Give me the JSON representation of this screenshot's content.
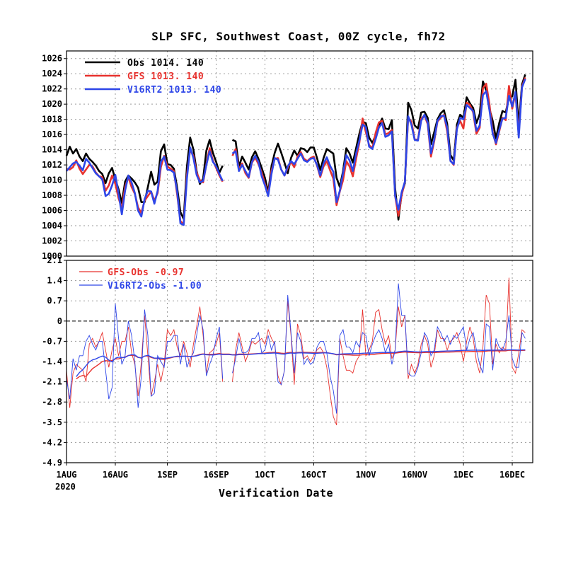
{
  "chart_data": [
    {
      "type": "line",
      "title": "SLP SFC, Southwest Coast, 00Z cycle, fh72",
      "ylim": [
        1000,
        1027
      ],
      "yticks": [
        1000,
        1002,
        1004,
        1006,
        1008,
        1010,
        1012,
        1014,
        1016,
        1018,
        1020,
        1022,
        1024,
        1026
      ],
      "x_dates": [
        "2020-08-01",
        "2020-08-02",
        "2020-08-03",
        "2020-08-04",
        "2020-08-05",
        "2020-08-06",
        "2020-08-07",
        "2020-08-08",
        "2020-08-09",
        "2020-08-10",
        "2020-08-11",
        "2020-08-12",
        "2020-08-13",
        "2020-08-14",
        "2020-08-15",
        "2020-08-16",
        "2020-08-17",
        "2020-08-18",
        "2020-08-19",
        "2020-08-20",
        "2020-08-21",
        "2020-08-22",
        "2020-08-23",
        "2020-08-24",
        "2020-08-25",
        "2020-08-26",
        "2020-08-27",
        "2020-08-28",
        "2020-08-29",
        "2020-08-30",
        "2020-08-31",
        "2020-09-01",
        "2020-09-02",
        "2020-09-03",
        "2020-09-04",
        "2020-09-05",
        "2020-09-06",
        "2020-09-07",
        "2020-09-08",
        "2020-09-09",
        "2020-09-10",
        "2020-09-11",
        "2020-09-12",
        "2020-09-13",
        "2020-09-14",
        "2020-09-15",
        "2020-09-16",
        "2020-09-17",
        "2020-09-18",
        "2020-09-19",
        "2020-09-20",
        "2020-09-21",
        "2020-09-22",
        "2020-09-23",
        "2020-09-24",
        "2020-09-25",
        "2020-09-26",
        "2020-09-27",
        "2020-09-28",
        "2020-09-29",
        "2020-09-30",
        "2020-10-01",
        "2020-10-02",
        "2020-10-03",
        "2020-10-04",
        "2020-10-05",
        "2020-10-06",
        "2020-10-07",
        "2020-10-08",
        "2020-10-09",
        "2020-10-10",
        "2020-10-11",
        "2020-10-12",
        "2020-10-13",
        "2020-10-14",
        "2020-10-15",
        "2020-10-16",
        "2020-10-17",
        "2020-10-18",
        "2020-10-19",
        "2020-10-20",
        "2020-10-21",
        "2020-10-22",
        "2020-10-23",
        "2020-10-24",
        "2020-10-25",
        "2020-10-26",
        "2020-10-27",
        "2020-10-28",
        "2020-10-29",
        "2020-10-30",
        "2020-10-31",
        "2020-11-01",
        "2020-11-02",
        "2020-11-03",
        "2020-11-04",
        "2020-11-05",
        "2020-11-06",
        "2020-11-07",
        "2020-11-08",
        "2020-11-09",
        "2020-11-10",
        "2020-11-11",
        "2020-11-12",
        "2020-11-13",
        "2020-11-14",
        "2020-11-15",
        "2020-11-16",
        "2020-11-17",
        "2020-11-18",
        "2020-11-19",
        "2020-11-20",
        "2020-11-21",
        "2020-11-22",
        "2020-11-23",
        "2020-11-24",
        "2020-11-25",
        "2020-11-26",
        "2020-11-27",
        "2020-11-28",
        "2020-11-29",
        "2020-11-30",
        "2020-12-01",
        "2020-12-02",
        "2020-12-03",
        "2020-12-04",
        "2020-12-05",
        "2020-12-06",
        "2020-12-07",
        "2020-12-08",
        "2020-12-09",
        "2020-12-10",
        "2020-12-11",
        "2020-12-12",
        "2020-12-13",
        "2020-12-14",
        "2020-12-15",
        "2020-12-16",
        "2020-12-17",
        "2020-12-18",
        "2020-12-19",
        "2020-12-20",
        "2020-12-21"
      ],
      "series": [
        {
          "name": "Obs",
          "legend_label": "Obs  1014.  140",
          "color": "#000000",
          "values": [
            1013.2,
            1014.4,
            1013.5,
            1014.1,
            1013.1,
            1012.5,
            1013.5,
            1012.8,
            1012.4,
            1011.9,
            1011.2,
            1010.8,
            1009.6,
            1010.9,
            1011.6,
            1010.1,
            1008.8,
            1007.0,
            1009.8,
            1010.6,
            1010.2,
            1009.7,
            1009.0,
            1007.1,
            1007.1,
            1009.1,
            1011.1,
            1009.4,
            1009.8,
            1013.8,
            1014.7,
            1012.1,
            1012.0,
            1011.5,
            1009.0,
            1005.8,
            1004.9,
            1011.8,
            1015.6,
            1014.0,
            1011.2,
            1009.5,
            1010.2,
            1013.9,
            1015.3,
            1013.6,
            1012.4,
            1011.0,
            1011.9,
            null,
            null,
            1015.3,
            1015.1,
            1011.8,
            1013.1,
            1012.3,
            1011.4,
            1013.0,
            1013.8,
            1012.8,
            1011.6,
            1010.3,
            1008.4,
            1011.8,
            1013.6,
            1014.8,
            1013.6,
            1012.3,
            1010.9,
            1012.9,
            1013.9,
            1013.2,
            1014.2,
            1014.1,
            1013.7,
            1014.3,
            1014.3,
            1012.9,
            1011.3,
            1012.9,
            1014.1,
            1013.8,
            1013.5,
            1010.3,
            1009.1,
            1011.2,
            1014.2,
            1013.5,
            1012.3,
            1014.2,
            1016.1,
            1017.7,
            1017.5,
            1015.6,
            1014.9,
            1015.9,
            1017.2,
            1018.1,
            1016.8,
            1016.7,
            1017.9,
            1008.9,
            1004.8,
            1008.2,
            1009.6,
            1020.2,
            1019.2,
            1017.2,
            1016.8,
            1018.9,
            1019.0,
            1018.2,
            1014.7,
            1016.3,
            1018.0,
            1018.8,
            1019.2,
            1017.4,
            1013.3,
            1012.6,
            1017.3,
            1018.6,
            1018.2,
            1020.9,
            1020.1,
            1019.5,
            1017.5,
            1018.7,
            1023.0,
            1021.8,
            1019.4,
            1017.8,
            1015.5,
            1017.5,
            1019.1,
            1018.9,
            1020.9,
            1021.0,
            1023.2,
            1017.2,
            1022.6,
            1023.9
          ]
        },
        {
          "name": "GFS",
          "legend_label": "GFS  1013.  140",
          "color": "#e8322e",
          "values": [
            1011.5,
            1011.4,
            1011.7,
            1012.6,
            1011.5,
            1010.8,
            1011.4,
            1012.0,
            1011.8,
            1011.0,
            1010.5,
            1010.4,
            1008.6,
            1009.3,
            1010.6,
            1009.5,
            1007.6,
            1006.3,
            1009.1,
            1010.4,
            1009.1,
            1008.2,
            1006.4,
            1005.7,
            1007.3,
            1007.9,
            1008.5,
            1007.3,
            1008.3,
            1011.7,
            1013.2,
            1011.8,
            1011.5,
            1011.2,
            1008.1,
            1004.6,
            1004.2,
            1010.7,
            1014.0,
            1013.2,
            1011.0,
            1010.0,
            1009.7,
            1012.1,
            1014.2,
            1012.6,
            1011.6,
            1010.6,
            1009.8,
            null,
            null,
            1013.2,
            1014.1,
            1011.4,
            1012.2,
            1010.9,
            1010.3,
            1012.3,
            1013.0,
            1012.1,
            1011.0,
            1009.5,
            1008.1,
            1011.2,
            1012.8,
            1012.9,
            1011.4,
            1010.6,
            1011.6,
            1012.4,
            1011.7,
            1013.1,
            1013.7,
            1012.8,
            1012.5,
            1012.9,
            1013.1,
            1011.9,
            1010.4,
            1011.8,
            1012.5,
            1011.3,
            1010.2,
            1006.7,
            1008.5,
            1010.0,
            1012.5,
            1011.8,
            1010.5,
            1012.8,
            1014.9,
            1018.1,
            1016.3,
            1014.6,
            1014.2,
            1016.2,
            1017.6,
            1017.8,
            1016.0,
            1016.2,
            1016.6,
            1007.9,
            1005.3,
            1008.0,
            1009.8,
            1018.2,
            1017.7,
            1015.4,
            1015.3,
            1018.1,
            1018.5,
            1017.4,
            1013.1,
            1015.1,
            1017.7,
            1018.2,
            1018.6,
            1016.4,
            1012.6,
            1012.0,
            1016.9,
            1017.8,
            1016.8,
            1020.2,
            1019.9,
            1018.9,
            1016.1,
            1016.9,
            1022.1,
            1022.7,
            1020.0,
            1016.3,
            1014.7,
            1016.4,
            1018.2,
            1017.9,
            1022.4,
            1019.4,
            1021.4,
            1016.1,
            1022.3,
            1023.5
          ]
        },
        {
          "name": "V16RT2",
          "legend_label": "V16RT2  1013.  140",
          "color": "#2e46e8",
          "values": [
            1011.2,
            1011.7,
            1012.2,
            1012.4,
            1011.9,
            1011.3,
            1012.8,
            1012.3,
            1011.6,
            1010.9,
            1010.5,
            1010.1,
            1007.9,
            1008.2,
            1009.3,
            1010.7,
            1008.2,
            1005.5,
            1008.6,
            1010.6,
            1009.7,
            1008.3,
            1006.0,
            1005.2,
            1007.5,
            1008.6,
            1008.5,
            1006.9,
            1008.6,
            1012.4,
            1013.1,
            1011.4,
            1011.3,
            1011.0,
            1008.5,
            1004.3,
            1004.1,
            1010.2,
            1014.3,
            1012.9,
            1010.7,
            1009.7,
            1009.9,
            1012.0,
            1013.8,
            1012.4,
            1011.8,
            1010.8,
            1009.9,
            null,
            null,
            1013.5,
            1013.8,
            1011.2,
            1012.0,
            1011.2,
            1010.4,
            1012.4,
            1013.2,
            1012.4,
            1010.5,
            1009.3,
            1007.9,
            1010.8,
            1012.9,
            1012.7,
            1011.4,
            1010.6,
            1011.8,
            1012.5,
            1012.1,
            1012.8,
            1013.5,
            1012.6,
            1012.4,
            1012.8,
            1012.9,
            1012.0,
            1010.6,
            1012.2,
            1013.0,
            1011.9,
            1011.1,
            1007.1,
            1008.6,
            1010.9,
            1013.3,
            1012.6,
            1011.2,
            1013.5,
            1015.2,
            1017.3,
            1017.0,
            1014.4,
            1014.1,
            1015.4,
            1016.9,
            1017.5,
            1015.7,
            1015.9,
            1016.4,
            1007.9,
            1006.1,
            1008.4,
            1009.8,
            1018.4,
            1017.3,
            1015.3,
            1015.2,
            1017.8,
            1018.6,
            1017.6,
            1013.5,
            1015.3,
            1017.8,
            1018.4,
            1018.5,
            1016.9,
            1012.5,
            1012.1,
            1016.7,
            1018.2,
            1018.0,
            1019.9,
            1019.5,
            1019.1,
            1016.5,
            1017.2,
            1021.2,
            1021.7,
            1019.2,
            1016.1,
            1014.9,
            1016.6,
            1018.1,
            1018.2,
            1021.1,
            1019.7,
            1021.6,
            1015.6,
            1022.2,
            1023.3
          ]
        }
      ]
    },
    {
      "type": "line",
      "xlabel": "Verification Date",
      "ylim": [
        -4.9,
        2.1
      ],
      "yticks": [
        -4.9,
        -4.2,
        -3.5,
        -2.8,
        -2.1,
        -1.4,
        -0.7,
        0,
        0.7,
        1.4,
        2.1
      ],
      "ytick_labels": [
        "-4.9",
        "-4.2",
        "-3.5",
        "-2.8",
        "-2.1",
        "-1.4",
        "-0.7",
        "0",
        "0.7",
        "1.4",
        "2.1"
      ],
      "xtick_dates": [
        "2020-08-01",
        "2020-08-16",
        "2020-09-01",
        "2020-09-16",
        "2020-10-01",
        "2020-10-16",
        "2020-11-01",
        "2020-11-16",
        "2020-12-01",
        "2020-12-16"
      ],
      "xtick_labels": [
        "1AUG",
        "16AUG",
        "1SEP",
        "16SEP",
        "1OCT",
        "16OCT",
        "1NOV",
        "16NOV",
        "1DEC",
        "16DEC"
      ],
      "year_label": "2020",
      "zero_line": true,
      "series": [
        {
          "name": "GFS-Obs",
          "legend_label": "GFS-Obs -0.97",
          "color": "#e8322e",
          "derived": "GFS minus Obs (daily) with running mean"
        },
        {
          "name": "V16RT2-Obs",
          "legend_label": "V16RT2-Obs -1.00",
          "color": "#2e46e8",
          "derived": "V16RT2 minus Obs (daily) with running mean"
        }
      ]
    }
  ]
}
